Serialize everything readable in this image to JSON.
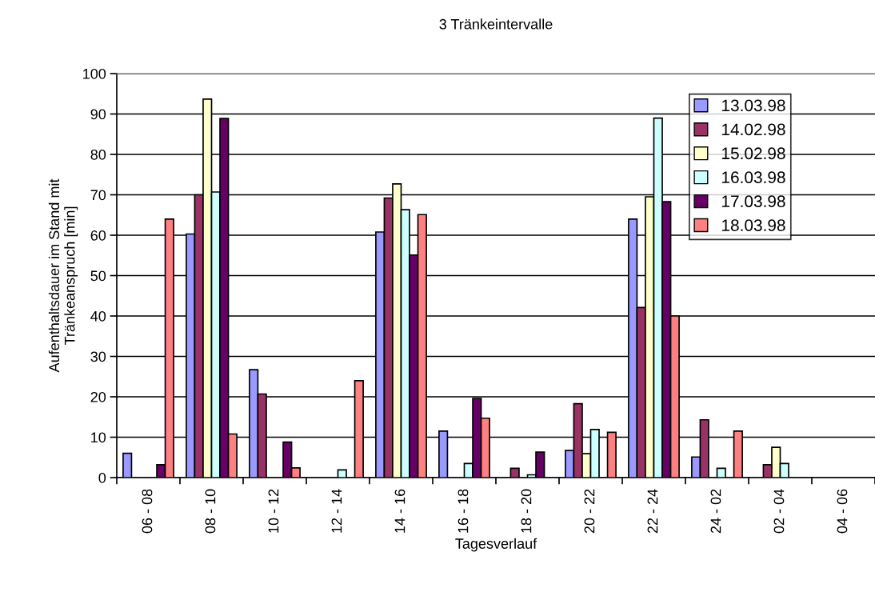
{
  "chart_data": {
    "type": "bar",
    "title": "3 Tränkeintervalle",
    "xlabel": "Tagesverlauf",
    "ylabel": "Aufenthaltsdauer im Stand mit\nTränkeanspruch [min]",
    "categories": [
      "06 - 08",
      "08 - 10",
      "10 - 12",
      "12 - 14",
      "14 - 16",
      "16 - 18",
      "18 - 20",
      "20 - 22",
      "22 - 24",
      "24 - 02",
      "02 - 04",
      "04 - 06"
    ],
    "series": [
      {
        "name": "13.03.98",
        "color": "#9999ff",
        "values": [
          6,
          60.3,
          26.7,
          null,
          60.8,
          11.5,
          null,
          6.7,
          64,
          5.1,
          null,
          null
        ]
      },
      {
        "name": "14.02.98",
        "color": "#993366",
        "values": [
          null,
          70,
          20.7,
          null,
          69.2,
          null,
          2.3,
          18.3,
          42.1,
          14.3,
          3.2,
          null
        ]
      },
      {
        "name": "15.02.98",
        "color": "#ffffcc",
        "values": [
          null,
          93.7,
          null,
          null,
          72.7,
          null,
          null,
          5.9,
          69.5,
          null,
          7.5,
          null
        ]
      },
      {
        "name": "16.03.98",
        "color": "#ccffff",
        "values": [
          null,
          70.7,
          null,
          1.9,
          66.3,
          3.5,
          0.7,
          11.9,
          89,
          2.3,
          3.5,
          null
        ]
      },
      {
        "name": "17.03.98",
        "color": "#660066",
        "values": [
          3.2,
          88.9,
          8.8,
          null,
          55.1,
          19.6,
          6.3,
          null,
          68.3,
          null,
          null,
          null
        ]
      },
      {
        "name": "18.03.98",
        "color": "#ff8080",
        "values": [
          64,
          10.8,
          2.4,
          24,
          65.1,
          14.7,
          null,
          11.2,
          40,
          11.5,
          null,
          null
        ]
      }
    ],
    "ylim": [
      0,
      100
    ],
    "yticks": [
      0,
      10,
      20,
      30,
      40,
      50,
      60,
      70,
      80,
      90,
      100
    ],
    "grid": "y",
    "legend": "top right"
  }
}
